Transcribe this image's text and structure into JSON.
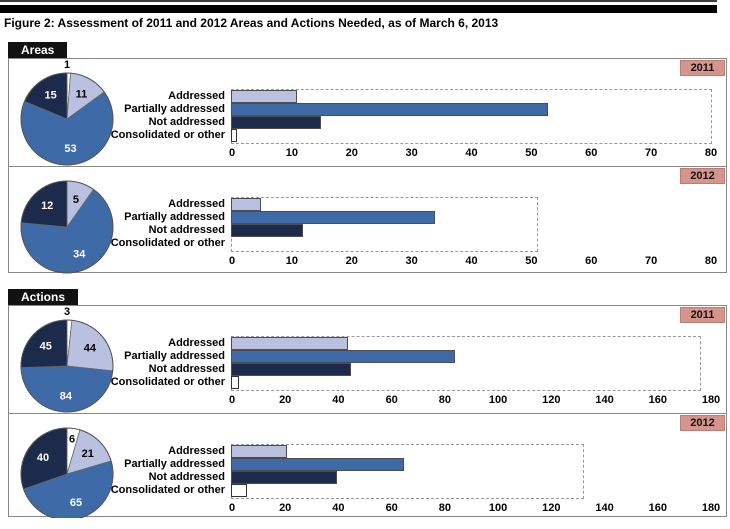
{
  "figure": {
    "title": "Figure 2: Assessment of 2011 and 2012 Areas and Actions Needed, as of March 6, 2013"
  },
  "categories": [
    "Addressed",
    "Partially addressed",
    "Not addressed",
    "Consolidated or other"
  ],
  "colors": {
    "addressed": "#bac1e0",
    "partially_addressed": "#3e6ba8",
    "not_addressed": "#1c2a4c",
    "consolidated_or_other": "#ffffff",
    "pie_label_dark_slice": "#ffffff",
    "pie_label_light_slice": "#000000",
    "badge_bg": "#d6948c",
    "badge_border": "#b57f78",
    "tab_bg": "#111111",
    "box_border": "#888888",
    "dashed_outline": "#999999"
  },
  "sections": [
    {
      "label": "Areas"
    },
    {
      "label": "Actions"
    }
  ],
  "chart_data": [
    {
      "type": "pie+bar",
      "section": "Areas",
      "year": "2011",
      "categories": [
        "Addressed",
        "Partially addressed",
        "Not addressed",
        "Consolidated or other"
      ],
      "values": [
        11,
        53,
        15,
        1
      ],
      "total": 80,
      "dashed_outline_value": 80,
      "axis": {
        "min": 0,
        "max": 80,
        "ticks": [
          0,
          10,
          20,
          30,
          40,
          50,
          60,
          70,
          80
        ]
      }
    },
    {
      "type": "pie+bar",
      "section": "Areas",
      "year": "2012",
      "categories": [
        "Addressed",
        "Partially addressed",
        "Not addressed",
        "Consolidated or other"
      ],
      "values": [
        5,
        34,
        12,
        0
      ],
      "total": 51,
      "dashed_outline_value": 51,
      "axis": {
        "min": 0,
        "max": 80,
        "ticks": [
          0,
          10,
          20,
          30,
          40,
          50,
          60,
          70,
          80
        ]
      }
    },
    {
      "type": "pie+bar",
      "section": "Actions",
      "year": "2011",
      "categories": [
        "Addressed",
        "Partially addressed",
        "Not addressed",
        "Consolidated or other"
      ],
      "values": [
        44,
        84,
        45,
        3
      ],
      "total": 176,
      "dashed_outline_value": 176,
      "axis": {
        "min": 0,
        "max": 180,
        "ticks": [
          0,
          20,
          40,
          60,
          80,
          100,
          120,
          140,
          160,
          180
        ]
      }
    },
    {
      "type": "pie+bar",
      "section": "Actions",
      "year": "2012",
      "categories": [
        "Addressed",
        "Partially addressed",
        "Not addressed",
        "Consolidated or other"
      ],
      "values": [
        21,
        65,
        40,
        6
      ],
      "total": 132,
      "dashed_outline_value": 132,
      "axis": {
        "min": 0,
        "max": 180,
        "ticks": [
          0,
          20,
          40,
          60,
          80,
          100,
          120,
          140,
          160,
          180
        ]
      }
    }
  ]
}
